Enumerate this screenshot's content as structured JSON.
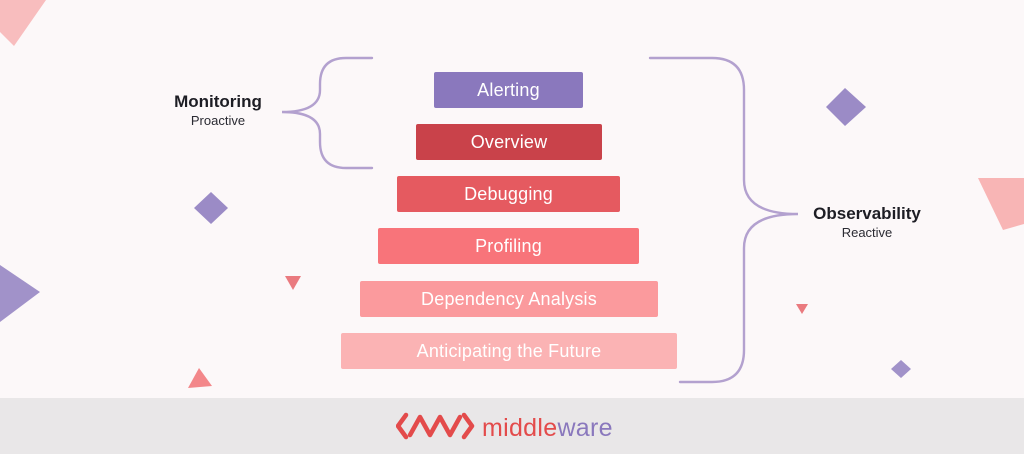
{
  "colors": {
    "background": "#fcf8f9",
    "footer": "#e9e7e8",
    "brace": "#b3a1cf",
    "purple": "#8a78bd",
    "red": "#e34b4b"
  },
  "pyramid": {
    "layers": [
      {
        "label": "Alerting",
        "color": "#8a78bd"
      },
      {
        "label": "Overview",
        "color": "#c9424a"
      },
      {
        "label": "Debugging",
        "color": "#e55a60"
      },
      {
        "label": "Profiling",
        "color": "#f8747a"
      },
      {
        "label": "Dependency Analysis",
        "color": "#fb9a9d"
      },
      {
        "label": "Anticipating the Future",
        "color": "#fbb3b4"
      }
    ]
  },
  "monitoring": {
    "title": "Monitoring",
    "subtitle": "Proactive"
  },
  "observability": {
    "title": "Observability",
    "subtitle": "Reactive"
  },
  "brand": {
    "name_part1": "middle",
    "name_part2": "ware",
    "logo_icon": "middleware-logo-icon"
  }
}
